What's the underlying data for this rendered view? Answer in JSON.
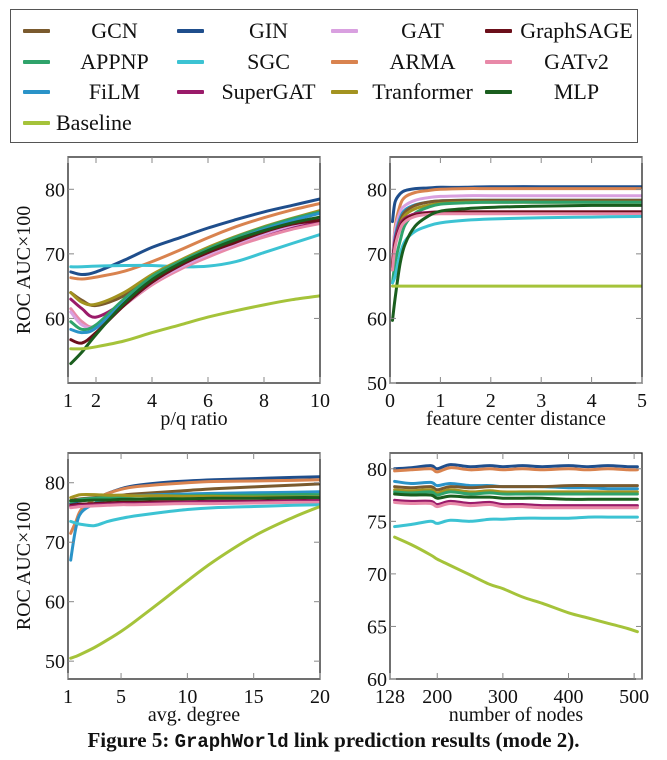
{
  "legend": {
    "entries": [
      {
        "name": "GCN",
        "color": "#7a5a2e"
      },
      {
        "name": "GIN",
        "color": "#1f4e8c"
      },
      {
        "name": "GAT",
        "color": "#d9a0e0"
      },
      {
        "name": "GraphSAGE",
        "color": "#6b0f1a"
      },
      {
        "name": "APPNP",
        "color": "#2fa36b"
      },
      {
        "name": "SGC",
        "color": "#3cc3d3"
      },
      {
        "name": "ARMA",
        "color": "#d9834f"
      },
      {
        "name": "GATv2",
        "color": "#e889a8"
      },
      {
        "name": "FiLM",
        "color": "#2a93c8"
      },
      {
        "name": "SuperGAT",
        "color": "#9a1b6a"
      },
      {
        "name": "Tranformer",
        "color": "#a39320"
      },
      {
        "name": "MLP",
        "color": "#1a5e1e"
      },
      {
        "name": "Baseline",
        "color": "#a5c33a"
      }
    ]
  },
  "caption": {
    "prefix": "Figure 5: ",
    "mono": "GraphWorld",
    "suffix": " link prediction results (mode 2)."
  },
  "chart_data": [
    {
      "type": "line",
      "id": "pq",
      "title": "",
      "xlabel": "p/q ratio",
      "ylabel": "ROC AUC×100",
      "xlim": [
        1,
        10
      ],
      "ylim": [
        50,
        85
      ],
      "xticks": [
        1,
        2,
        4,
        6,
        8,
        10
      ],
      "yticks": [
        60,
        70,
        80
      ],
      "x": [
        1.1,
        1.5,
        2,
        3,
        4,
        5,
        6,
        7,
        8,
        9,
        10
      ],
      "series": [
        {
          "name": "GIN",
          "values": [
            67.2,
            66.8,
            67.2,
            69.0,
            71.0,
            72.5,
            74.0,
            75.3,
            76.5,
            77.5,
            78.5
          ]
        },
        {
          "name": "ARMA",
          "values": [
            66.3,
            66.1,
            66.4,
            67.3,
            68.8,
            70.6,
            72.5,
            74.2,
            75.6,
            76.8,
            77.8
          ]
        },
        {
          "name": "SGC",
          "values": [
            68.0,
            68.0,
            68.1,
            68.2,
            68.2,
            68.0,
            68.1,
            68.8,
            70.2,
            71.6,
            73.0
          ]
        },
        {
          "name": "GCN",
          "values": [
            64.0,
            62.8,
            62.0,
            63.5,
            66.5,
            68.8,
            70.8,
            72.5,
            74.0,
            75.3,
            76.5
          ]
        },
        {
          "name": "Tranformer",
          "values": [
            64.0,
            62.5,
            62.2,
            64.0,
            66.8,
            69.0,
            71.0,
            72.7,
            74.2,
            75.5,
            76.7
          ]
        },
        {
          "name": "SuperGAT",
          "values": [
            63.0,
            61.5,
            60.2,
            62.5,
            65.8,
            68.0,
            69.8,
            71.5,
            73.0,
            74.2,
            75.0
          ]
        },
        {
          "name": "GATv2",
          "values": [
            61.5,
            59.5,
            58.8,
            62.0,
            65.2,
            67.6,
            69.5,
            71.2,
            72.6,
            73.8,
            74.7
          ]
        },
        {
          "name": "GAT",
          "values": [
            61.0,
            59.0,
            58.8,
            62.0,
            65.5,
            67.9,
            69.9,
            71.6,
            73.1,
            74.4,
            75.4
          ]
        },
        {
          "name": "APPNP",
          "values": [
            59.5,
            58.3,
            59.0,
            63.0,
            66.5,
            68.8,
            70.8,
            72.6,
            74.1,
            75.4,
            76.5
          ]
        },
        {
          "name": "FiLM",
          "values": [
            58.3,
            57.8,
            58.5,
            62.5,
            66.0,
            68.5,
            70.5,
            72.2,
            73.8,
            75.1,
            76.3
          ]
        },
        {
          "name": "GraphSAGE",
          "values": [
            56.7,
            56.2,
            57.8,
            62.0,
            65.6,
            68.2,
            70.2,
            71.8,
            73.4,
            74.6,
            75.2
          ]
        },
        {
          "name": "MLP",
          "values": [
            53.0,
            54.8,
            57.5,
            62.3,
            66.0,
            68.5,
            70.5,
            72.2,
            73.6,
            74.8,
            75.7
          ]
        },
        {
          "name": "Baseline",
          "values": [
            55.3,
            55.3,
            55.6,
            56.5,
            57.8,
            59.0,
            60.2,
            61.2,
            62.1,
            62.9,
            63.5
          ]
        }
      ]
    },
    {
      "type": "line",
      "id": "fcd",
      "title": "",
      "xlabel": "feature center distance",
      "ylabel": "",
      "xlim": [
        0,
        5
      ],
      "ylim": [
        50,
        85
      ],
      "xticks": [
        0,
        1,
        2,
        3,
        4,
        5
      ],
      "yticks": [
        50,
        60,
        70,
        80
      ],
      "x": [
        0.05,
        0.1,
        0.2,
        0.3,
        0.5,
        0.75,
        1,
        1.5,
        2,
        3,
        4,
        5
      ],
      "series": [
        {
          "name": "GIN",
          "values": [
            75.0,
            78.0,
            79.3,
            79.8,
            80.1,
            80.2,
            80.3,
            80.3,
            80.4,
            80.4,
            80.4,
            80.4
          ]
        },
        {
          "name": "ARMA",
          "values": [
            68.5,
            74.0,
            77.5,
            78.8,
            79.5,
            79.8,
            80.0,
            80.1,
            80.1,
            80.1,
            80.1,
            80.1
          ]
        },
        {
          "name": "GAT",
          "values": [
            69.0,
            73.5,
            76.5,
            77.5,
            78.3,
            78.7,
            78.9,
            79.0,
            79.0,
            79.0,
            79.0,
            79.0
          ]
        },
        {
          "name": "FiLM",
          "values": [
            68.0,
            72.5,
            75.5,
            76.8,
            77.6,
            78.0,
            78.2,
            78.3,
            78.3,
            78.3,
            78.3,
            78.3
          ]
        },
        {
          "name": "GCN",
          "values": [
            68.5,
            72.0,
            75.0,
            76.5,
            77.5,
            78.0,
            78.2,
            78.3,
            78.3,
            78.3,
            78.3,
            78.3
          ]
        },
        {
          "name": "Tranformer",
          "values": [
            67.5,
            71.5,
            74.5,
            76.0,
            77.0,
            77.5,
            77.8,
            78.0,
            78.0,
            78.0,
            78.0,
            78.0
          ]
        },
        {
          "name": "APPNP",
          "values": [
            65.5,
            68.5,
            72.0,
            74.5,
            76.3,
            77.2,
            77.7,
            77.9,
            78.0,
            78.0,
            78.0,
            78.0
          ]
        },
        {
          "name": "SuperGAT",
          "values": [
            68.0,
            72.0,
            74.5,
            75.5,
            76.2,
            76.4,
            76.5,
            76.5,
            76.5,
            76.5,
            76.5,
            76.5
          ]
        },
        {
          "name": "GraphSAGE",
          "values": [
            68.0,
            71.5,
            74.0,
            75.3,
            76.0,
            76.3,
            76.5,
            76.5,
            76.5,
            76.5,
            76.5,
            76.5
          ]
        },
        {
          "name": "GATv2",
          "values": [
            67.5,
            71.0,
            73.8,
            75.0,
            75.8,
            76.1,
            76.2,
            76.2,
            76.2,
            76.2,
            76.2,
            76.2
          ]
        },
        {
          "name": "SGC",
          "values": [
            65.5,
            66.5,
            70.0,
            72.0,
            73.5,
            74.3,
            74.8,
            75.2,
            75.4,
            75.6,
            75.7,
            75.8
          ]
        },
        {
          "name": "MLP",
          "values": [
            59.7,
            63.0,
            68.5,
            71.5,
            74.3,
            75.8,
            76.6,
            77.0,
            77.2,
            77.4,
            77.5,
            77.5
          ]
        },
        {
          "name": "Baseline",
          "values": [
            65.0,
            65.0,
            65.0,
            65.0,
            65.0,
            65.0,
            65.0,
            65.0,
            65.0,
            65.0,
            65.0,
            65.0
          ]
        }
      ]
    },
    {
      "type": "line",
      "id": "deg",
      "title": "",
      "xlabel": "avg. degree",
      "ylabel": "ROC AUC×100",
      "xlim": [
        1,
        20
      ],
      "ylim": [
        47,
        85
      ],
      "xticks": [
        1,
        5,
        10,
        15,
        20
      ],
      "yticks": [
        50,
        60,
        70,
        80
      ],
      "x": [
        1.2,
        1.6,
        2,
        3,
        4,
        5,
        6,
        8,
        10,
        12,
        15,
        18,
        20
      ],
      "series": [
        {
          "name": "GIN",
          "values": [
            76.5,
            76.8,
            77.0,
            77.3,
            78.2,
            79.0,
            79.5,
            80.0,
            80.3,
            80.5,
            80.7,
            80.9,
            81.0
          ]
        },
        {
          "name": "ARMA",
          "values": [
            71.5,
            73.5,
            75.5,
            77.2,
            78.2,
            78.9,
            79.3,
            79.7,
            80.0,
            80.2,
            80.3,
            80.4,
            80.5
          ]
        },
        {
          "name": "GCN",
          "values": [
            77.0,
            77.2,
            77.3,
            77.5,
            77.7,
            77.9,
            78.1,
            78.4,
            78.7,
            79.0,
            79.3,
            79.6,
            79.8
          ]
        },
        {
          "name": "FiLM",
          "values": [
            67.0,
            72.5,
            75.0,
            76.5,
            77.2,
            77.6,
            77.8,
            78.0,
            78.1,
            78.2,
            78.3,
            78.4,
            78.5
          ]
        },
        {
          "name": "APPNP",
          "values": [
            76.8,
            77.0,
            77.2,
            77.4,
            77.5,
            77.6,
            77.7,
            77.8,
            77.8,
            77.9,
            77.9,
            78.0,
            78.0
          ]
        },
        {
          "name": "Tranformer",
          "values": [
            77.5,
            77.8,
            78.0,
            78.0,
            77.9,
            77.9,
            77.8,
            77.8,
            77.7,
            77.7,
            77.6,
            77.6,
            77.6
          ]
        },
        {
          "name": "MLP",
          "values": [
            77.0,
            77.0,
            77.0,
            77.1,
            77.1,
            77.2,
            77.2,
            77.3,
            77.3,
            77.4,
            77.4,
            77.5,
            77.5
          ]
        },
        {
          "name": "GraphSAGE",
          "values": [
            76.2,
            76.3,
            76.4,
            76.5,
            76.6,
            76.7,
            76.7,
            76.8,
            76.8,
            76.9,
            76.9,
            77.0,
            77.0
          ]
        },
        {
          "name": "SuperGAT",
          "values": [
            76.0,
            76.1,
            76.2,
            76.3,
            76.4,
            76.5,
            76.5,
            76.6,
            76.7,
            76.8,
            76.8,
            76.9,
            77.0
          ]
        },
        {
          "name": "GATv2",
          "values": [
            75.8,
            75.9,
            76.0,
            76.1,
            76.2,
            76.3,
            76.3,
            76.4,
            76.5,
            76.5,
            76.6,
            76.7,
            76.7
          ]
        },
        {
          "name": "SGC",
          "values": [
            73.5,
            73.2,
            73.0,
            72.8,
            73.5,
            74.0,
            74.4,
            75.0,
            75.5,
            75.8,
            76.0,
            76.2,
            76.3
          ]
        },
        {
          "name": "Baseline",
          "values": [
            50.5,
            50.8,
            51.2,
            52.3,
            53.6,
            55.0,
            56.6,
            60.0,
            63.5,
            66.8,
            71.0,
            74.2,
            76.0
          ]
        }
      ]
    },
    {
      "type": "line",
      "id": "nodes",
      "title": "",
      "xlabel": "number of nodes",
      "ylabel": "",
      "xlim": [
        128,
        512
      ],
      "ylim": [
        60,
        81.5
      ],
      "xticks": [
        128,
        200,
        300,
        400,
        500
      ],
      "yticks": [
        60,
        65,
        70,
        75,
        80
      ],
      "x": [
        135,
        160,
        190,
        200,
        220,
        250,
        280,
        300,
        330,
        360,
        400,
        430,
        460,
        490,
        505
      ],
      "series": [
        {
          "name": "GIN",
          "values": [
            80.0,
            80.1,
            80.3,
            80.0,
            80.4,
            80.2,
            80.3,
            80.2,
            80.3,
            80.2,
            80.3,
            80.2,
            80.3,
            80.2,
            80.2
          ]
        },
        {
          "name": "ARMA",
          "values": [
            79.8,
            79.9,
            80.0,
            79.7,
            80.1,
            79.9,
            80.0,
            79.9,
            80.0,
            79.9,
            80.0,
            79.9,
            80.0,
            79.9,
            79.9
          ]
        },
        {
          "name": "FiLM",
          "values": [
            78.8,
            78.6,
            78.7,
            78.4,
            78.6,
            78.4,
            78.4,
            78.3,
            78.3,
            78.3,
            78.2,
            78.2,
            78.1,
            78.1,
            78.1
          ]
        },
        {
          "name": "GCN",
          "values": [
            78.3,
            78.2,
            78.3,
            78.0,
            78.3,
            78.2,
            78.3,
            78.3,
            78.3,
            78.3,
            78.4,
            78.4,
            78.4,
            78.4,
            78.4
          ]
        },
        {
          "name": "Tranformer",
          "values": [
            78.0,
            77.9,
            78.0,
            77.7,
            78.0,
            77.8,
            77.9,
            77.8,
            77.8,
            77.8,
            77.8,
            77.8,
            77.8,
            77.8,
            77.8
          ]
        },
        {
          "name": "APPNP",
          "values": [
            77.8,
            77.7,
            77.8,
            77.5,
            77.8,
            77.6,
            77.7,
            77.6,
            77.6,
            77.6,
            77.6,
            77.6,
            77.6,
            77.6,
            77.6
          ]
        },
        {
          "name": "MLP",
          "values": [
            77.6,
            77.5,
            77.5,
            77.2,
            77.4,
            77.3,
            77.3,
            77.2,
            77.2,
            77.2,
            77.1,
            77.1,
            77.1,
            77.1,
            77.1
          ]
        },
        {
          "name": "SuperGAT",
          "values": [
            77.0,
            76.9,
            76.9,
            76.6,
            76.9,
            76.7,
            76.8,
            76.6,
            76.6,
            76.5,
            76.5,
            76.5,
            76.5,
            76.5,
            76.5
          ]
        },
        {
          "name": "GATv2",
          "values": [
            76.8,
            76.7,
            76.7,
            76.4,
            76.7,
            76.5,
            76.6,
            76.4,
            76.4,
            76.3,
            76.3,
            76.3,
            76.3,
            76.3,
            76.3
          ]
        },
        {
          "name": "SGC",
          "values": [
            74.5,
            74.7,
            75.0,
            74.8,
            75.1,
            75.0,
            75.2,
            75.2,
            75.3,
            75.3,
            75.3,
            75.4,
            75.4,
            75.4,
            75.4
          ]
        },
        {
          "name": "Baseline",
          "values": [
            73.5,
            72.8,
            71.8,
            71.4,
            70.8,
            69.9,
            69.0,
            68.6,
            67.8,
            67.2,
            66.3,
            65.8,
            65.3,
            64.8,
            64.5
          ]
        }
      ]
    }
  ]
}
